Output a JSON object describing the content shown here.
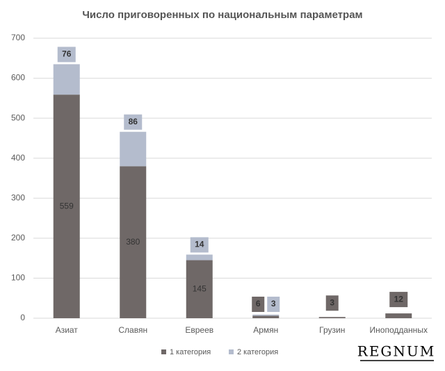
{
  "chart_data": {
    "type": "bar",
    "stacked": true,
    "title": "Число приговоренных по национальным параметрам",
    "categories": [
      "Азиат",
      "Славян",
      "Евреев",
      "Армян",
      "Грузин",
      "Иноподданных"
    ],
    "series": [
      {
        "name": "1 категория",
        "color": "#6f6867",
        "values": [
          559,
          380,
          145,
          6,
          3,
          12
        ]
      },
      {
        "name": "2 категория",
        "color": "#b4bccd",
        "values": [
          76,
          86,
          14,
          3,
          null,
          null
        ]
      }
    ],
    "ylim": [
      0,
      700
    ],
    "yticks": [
      0,
      100,
      200,
      300,
      400,
      500,
      600,
      700
    ],
    "grid": true,
    "legend": "bottom",
    "watermark": "REGNUM"
  }
}
